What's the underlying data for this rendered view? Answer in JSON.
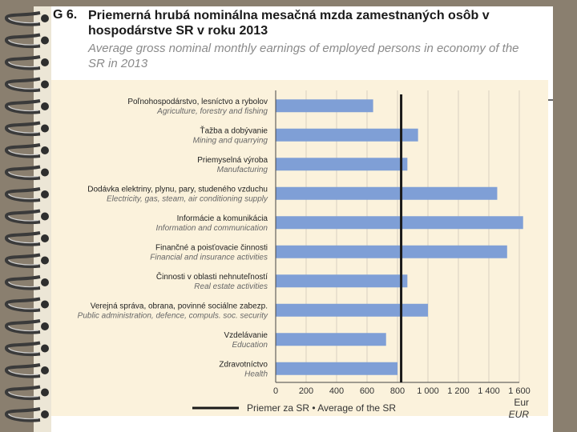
{
  "figure": {
    "code": "G 6.",
    "title_sk": "Priemerná hrubá nominálna mesačná mzda zamestnaných osôb v hospodárstve SR v roku 2013",
    "title_en": "Average gross nominal monthly earnings of employed persons in economy of the SR in 2013"
  },
  "chart_data": {
    "type": "bar",
    "orientation": "horizontal",
    "categories": [
      {
        "sk": "Poľnohospodárstvo, lesníctvo a rybolov",
        "en": "Agriculture, forestry and fishing"
      },
      {
        "sk": "Ťažba a dobývanie",
        "en": "Mining and quarrying"
      },
      {
        "sk": "Priemyselná výroba",
        "en": "Manufacturing"
      },
      {
        "sk": "Dodávka elektriny, plynu, pary, studeného vzduchu",
        "en": "Electricity, gas, steam, air conditioning supply"
      },
      {
        "sk": "Informácie a komunikácia",
        "en": "Information and communication"
      },
      {
        "sk": "Finančné a poisťovacie činnosti",
        "en": "Financial and insurance activities"
      },
      {
        "sk": "Činnosti v oblasti nehnuteľností",
        "en": "Real estate activities"
      },
      {
        "sk": "Verejná správa, obrana, povinné sociálne zabezp.",
        "en": "Public administration, defence, compuls. soc. security"
      },
      {
        "sk": "Vzdelávanie",
        "en": "Education"
      },
      {
        "sk": "Zdravotníctvo",
        "en": "Health"
      }
    ],
    "values": [
      640,
      935,
      865,
      1455,
      1625,
      1520,
      865,
      1000,
      725,
      800
    ],
    "average": 824,
    "xlim": [
      0,
      1600
    ],
    "xticks": [
      0,
      200,
      400,
      600,
      800,
      1000,
      1200,
      1400,
      1600
    ],
    "xtick_labels": [
      "0",
      "200",
      "400",
      "600",
      "800",
      "1 000",
      "1 200",
      "1 400",
      "1 600"
    ],
    "xlabel_sk": "Eur",
    "xlabel_en": "EUR",
    "legend": "Priemer za SR • Average of the SR",
    "grid": true,
    "bar_color": "#7f9fd6",
    "average_color": "#1a1a1a"
  }
}
